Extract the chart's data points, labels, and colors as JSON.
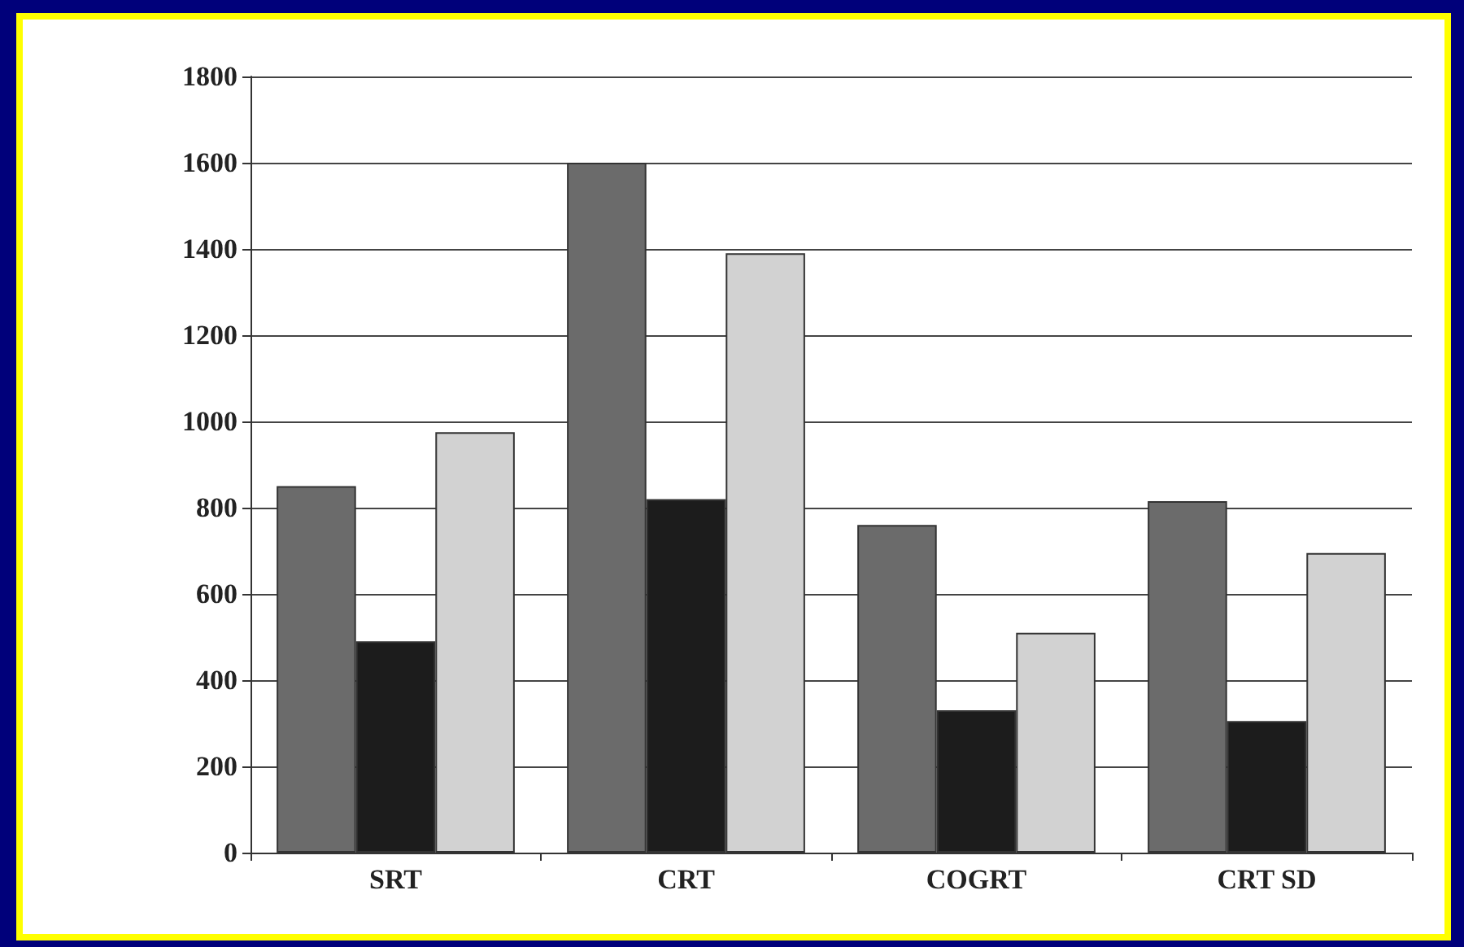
{
  "chart_data": {
    "type": "bar",
    "categories": [
      "SRT",
      "CRT",
      "COGRT",
      "CRT SD"
    ],
    "series": [
      {
        "color": "#6b6b6b",
        "values": [
          850,
          1600,
          760,
          815
        ]
      },
      {
        "color": "#1c1c1c",
        "values": [
          490,
          820,
          330,
          305
        ]
      },
      {
        "color": "#d2d2d2",
        "values": [
          975,
          1390,
          510,
          695
        ]
      }
    ],
    "ylim": [
      0,
      1800
    ],
    "yticks": [
      0,
      200,
      400,
      600,
      800,
      1000,
      1200,
      1400,
      1600,
      1800
    ],
    "grid": "y"
  }
}
